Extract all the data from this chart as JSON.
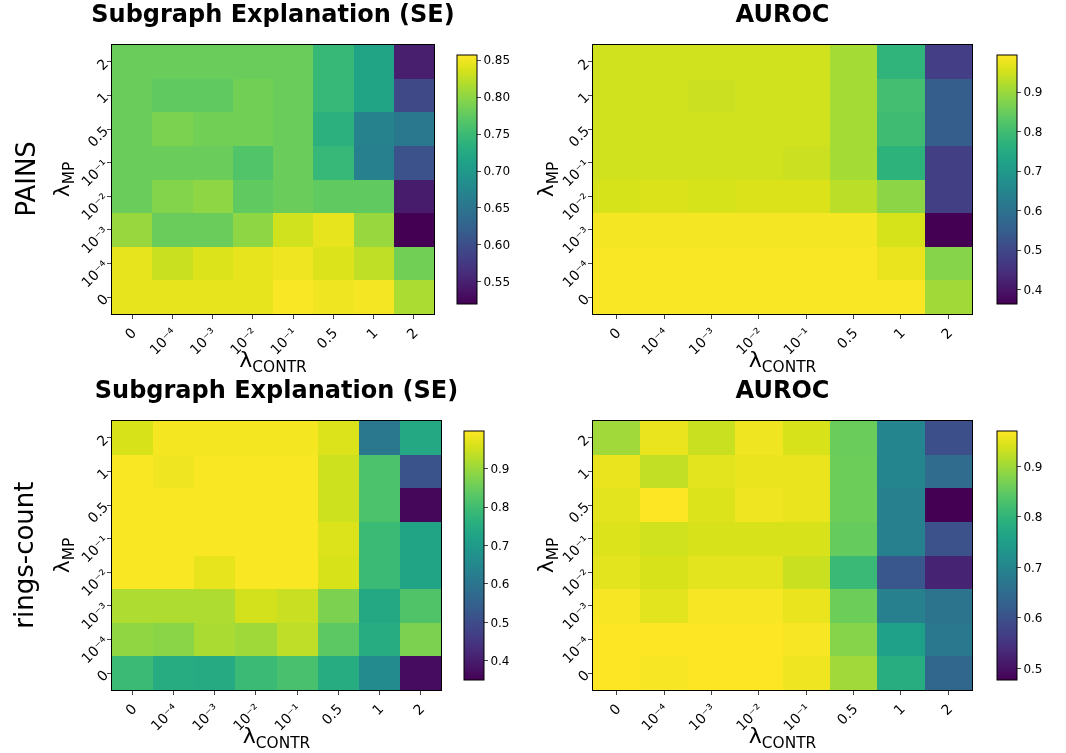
{
  "chart_data": [
    {
      "type": "heatmap",
      "title": "Subgraph Explanation (SE)",
      "xlabel": "λ$_{CONTR}$",
      "ylabel": "λ$_{MP}$",
      "annotations": [
        "PAINS"
      ],
      "categories": [
        "0",
        "10⁻⁴",
        "10⁻³",
        "10⁻²",
        "10⁻¹",
        "0.5",
        "1",
        "2"
      ],
      "y_categories": [
        "2",
        "1",
        "0.5",
        "10⁻¹",
        "10⁻²",
        "10⁻³",
        "10⁻⁴",
        "0"
      ],
      "cells": [
        [
          0.78,
          0.78,
          0.78,
          0.78,
          0.78,
          0.746,
          0.715,
          0.547
        ],
        [
          0.78,
          0.775,
          0.775,
          0.785,
          0.78,
          0.745,
          0.715,
          0.594
        ],
        [
          0.78,
          0.79,
          0.785,
          0.785,
          0.78,
          0.735,
          0.67,
          0.655
        ],
        [
          0.78,
          0.78,
          0.78,
          0.765,
          0.78,
          0.745,
          0.665,
          0.605
        ],
        [
          0.78,
          0.795,
          0.8,
          0.775,
          0.78,
          0.775,
          0.775,
          0.545
        ],
        [
          0.805,
          0.78,
          0.78,
          0.8,
          0.833,
          0.845,
          0.805,
          0.52
        ],
        [
          0.845,
          0.83,
          0.84,
          0.845,
          0.85,
          0.84,
          0.825,
          0.785
        ],
        [
          0.845,
          0.845,
          0.845,
          0.845,
          0.855,
          0.85,
          0.852,
          0.815
        ]
      ],
      "clim": [
        0.52,
        0.857
      ],
      "cticks": [
        {
          "value": 0.55,
          "label": "0.55"
        },
        {
          "value": 0.6,
          "label": "0.60"
        },
        {
          "value": 0.65,
          "label": "0.65"
        },
        {
          "value": 0.7,
          "label": "0.70"
        },
        {
          "value": 0.75,
          "label": "0.75"
        },
        {
          "value": 0.8,
          "label": "0.80"
        },
        {
          "value": 0.85,
          "label": "0.85"
        }
      ]
    },
    {
      "type": "heatmap",
      "title": "AUROC",
      "xlabel": "λ$_{CONTR}$",
      "ylabel": "λ$_{MP}$",
      "categories": [
        "0",
        "10⁻⁴",
        "10⁻³",
        "10⁻²",
        "10⁻¹",
        "0.5",
        "1",
        "2"
      ],
      "y_categories": [
        "2",
        "1",
        "0.5",
        "10⁻¹",
        "10⁻²",
        "10⁻³",
        "10⁻⁴",
        "0"
      ],
      "cells": [
        [
          0.95,
          0.95,
          0.95,
          0.95,
          0.95,
          0.91,
          0.775,
          0.478
        ],
        [
          0.95,
          0.95,
          0.945,
          0.95,
          0.95,
          0.91,
          0.805,
          0.55
        ],
        [
          0.95,
          0.95,
          0.95,
          0.95,
          0.95,
          0.91,
          0.8,
          0.55
        ],
        [
          0.95,
          0.95,
          0.95,
          0.95,
          0.945,
          0.91,
          0.77,
          0.48
        ],
        [
          0.955,
          0.96,
          0.955,
          0.96,
          0.96,
          0.93,
          0.885,
          0.48
        ],
        [
          0.985,
          0.985,
          0.985,
          0.985,
          0.985,
          0.985,
          0.955,
          0.364
        ],
        [
          0.99,
          0.99,
          0.99,
          0.99,
          0.99,
          0.99,
          0.975,
          0.88
        ],
        [
          0.99,
          0.99,
          0.99,
          0.99,
          0.99,
          0.99,
          0.99,
          0.905
        ]
      ],
      "clim": [
        0.364,
        0.994
      ],
      "cticks": [
        0.4,
        0.5,
        0.6,
        0.7,
        0.8,
        0.9
      ]
    },
    {
      "type": "heatmap",
      "title": "Subgraph Explanation (SE)",
      "xlabel": "λ$_{CONTR}$",
      "ylabel": "λ$_{MP}$",
      "annotations": [
        "rings-count"
      ],
      "categories": [
        "0",
        "10⁻⁴",
        "10⁻³",
        "10⁻²",
        "10⁻¹",
        "0.5",
        "1",
        "2"
      ],
      "y_categories": [
        "2",
        "1",
        "0.5",
        "10⁻¹",
        "10⁻²",
        "10⁻³",
        "10⁻⁴",
        "0"
      ],
      "cells": [
        [
          0.96,
          0.99,
          0.99,
          0.99,
          0.99,
          0.965,
          0.61,
          0.74
        ],
        [
          0.995,
          0.985,
          0.995,
          0.995,
          0.995,
          0.95,
          0.815,
          0.515
        ],
        [
          0.995,
          0.995,
          0.995,
          0.995,
          0.995,
          0.95,
          0.815,
          0.36
        ],
        [
          0.995,
          0.995,
          0.995,
          0.995,
          0.995,
          0.965,
          0.79,
          0.725
        ],
        [
          0.995,
          0.995,
          0.975,
          0.995,
          0.995,
          0.96,
          0.79,
          0.725
        ],
        [
          0.92,
          0.92,
          0.92,
          0.955,
          0.945,
          0.87,
          0.74,
          0.82
        ],
        [
          0.89,
          0.885,
          0.915,
          0.905,
          0.935,
          0.835,
          0.75,
          0.87
        ],
        [
          0.79,
          0.75,
          0.745,
          0.79,
          0.81,
          0.75,
          0.66,
          0.37
        ]
      ],
      "clim": [
        0.35,
        0.998
      ],
      "cticks": [
        0.4,
        0.5,
        0.6,
        0.7,
        0.8,
        0.9
      ]
    },
    {
      "type": "heatmap",
      "title": "AUROC",
      "xlabel": "λ$_{CONTR}$",
      "ylabel": "λ$_{MP}$",
      "categories": [
        "0",
        "10⁻⁴",
        "10⁻³",
        "10⁻²",
        "10⁻¹",
        "0.5",
        "1",
        "2"
      ],
      "y_categories": [
        "2",
        "1",
        "0.5",
        "10⁻¹",
        "10⁻²",
        "10⁻³",
        "10⁻⁴",
        "0"
      ],
      "cells": [
        [
          0.9,
          0.955,
          0.93,
          0.96,
          0.94,
          0.857,
          0.7,
          0.595
        ],
        [
          0.955,
          0.925,
          0.95,
          0.955,
          0.955,
          0.86,
          0.7,
          0.65
        ],
        [
          0.95,
          0.97,
          0.945,
          0.96,
          0.955,
          0.86,
          0.69,
          0.477
        ],
        [
          0.945,
          0.935,
          0.94,
          0.94,
          0.94,
          0.855,
          0.69,
          0.6
        ],
        [
          0.95,
          0.94,
          0.95,
          0.95,
          0.93,
          0.81,
          0.61,
          0.525
        ],
        [
          0.965,
          0.95,
          0.965,
          0.965,
          0.955,
          0.86,
          0.69,
          0.665
        ],
        [
          0.97,
          0.97,
          0.97,
          0.97,
          0.965,
          0.88,
          0.755,
          0.675
        ],
        [
          0.97,
          0.965,
          0.97,
          0.97,
          0.96,
          0.9,
          0.785,
          0.64
        ]
      ],
      "clim": [
        0.477,
        0.97
      ],
      "cticks": [
        0.5,
        0.6,
        0.7,
        0.8,
        0.9
      ]
    }
  ]
}
